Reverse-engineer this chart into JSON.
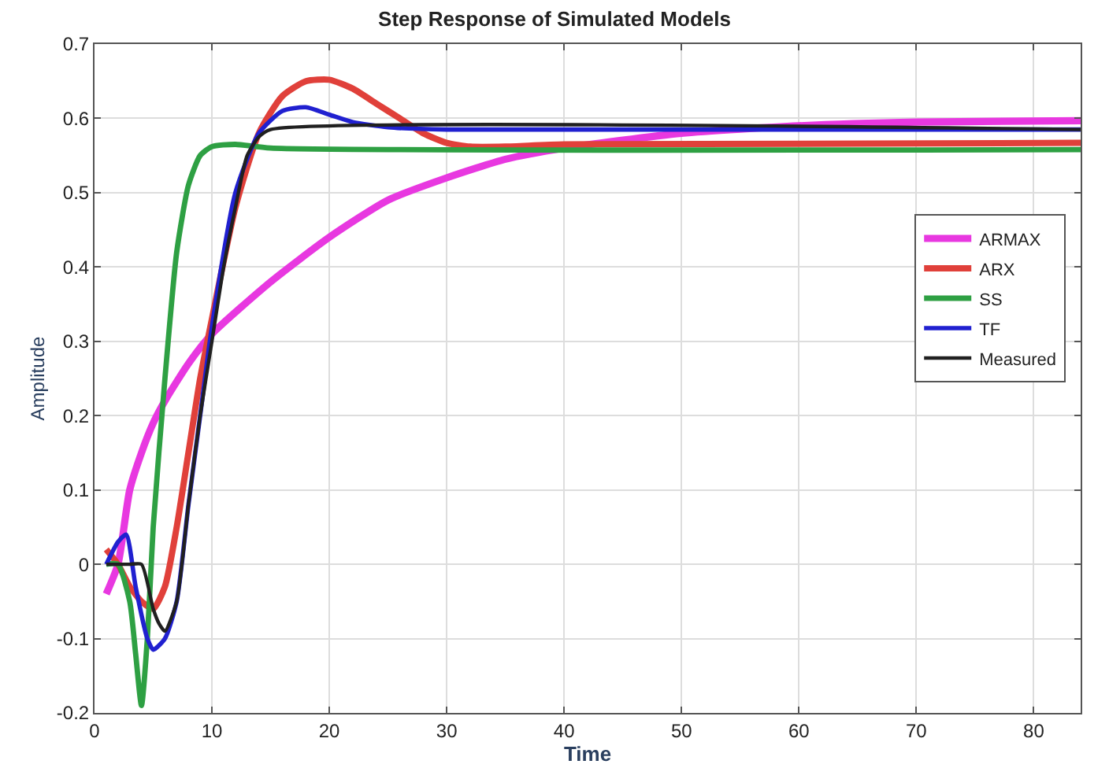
{
  "chart_data": {
    "type": "line",
    "title": "Step Response of Simulated Models",
    "xlabel": "Time",
    "ylabel": "Amplitude",
    "xlim": [
      0,
      84
    ],
    "ylim": [
      -0.2,
      0.7
    ],
    "xticks": [
      0,
      10,
      20,
      30,
      40,
      50,
      60,
      70,
      80
    ],
    "yticks": [
      -0.2,
      -0.1,
      0,
      0.1,
      0.2,
      0.3,
      0.4,
      0.5,
      0.6,
      0.7
    ],
    "grid": true,
    "legend": "right",
    "marker": "none",
    "line_style": "solid",
    "series": [
      {
        "name": "ARMAX",
        "color": "#e838e0",
        "x": [
          1,
          2,
          3,
          4,
          5,
          6,
          8,
          10,
          15,
          20,
          25,
          30,
          35,
          40,
          50,
          60,
          70,
          84
        ],
        "values": [
          -0.04,
          0.0,
          0.1,
          0.15,
          0.19,
          0.22,
          0.27,
          0.31,
          0.38,
          0.44,
          0.49,
          0.52,
          0.545,
          0.56,
          0.58,
          0.59,
          0.595,
          0.597
        ]
      },
      {
        "name": "ARX",
        "color": "#e0403a",
        "x": [
          1,
          2,
          3,
          4,
          5,
          6,
          7,
          8,
          9,
          10,
          12,
          14,
          16,
          18,
          20,
          22,
          24,
          26,
          28,
          30,
          32,
          35,
          40,
          84
        ],
        "values": [
          0.02,
          0.0,
          -0.03,
          -0.05,
          -0.06,
          -0.03,
          0.05,
          0.15,
          0.25,
          0.33,
          0.48,
          0.58,
          0.63,
          0.65,
          0.652,
          0.64,
          0.62,
          0.6,
          0.58,
          0.567,
          0.562,
          0.562,
          0.565,
          0.567
        ]
      },
      {
        "name": "SS",
        "color": "#2ea043",
        "x": [
          1,
          2,
          3,
          3.5,
          4,
          4.5,
          5,
          6,
          7,
          8,
          9,
          10,
          12,
          15,
          84
        ],
        "values": [
          0.0,
          0.0,
          -0.05,
          -0.12,
          -0.19,
          -0.1,
          0.05,
          0.25,
          0.42,
          0.51,
          0.55,
          0.562,
          0.565,
          0.56,
          0.558
        ]
      },
      {
        "name": "TF",
        "color": "#2020d0",
        "x": [
          1,
          2,
          2.7,
          3.5,
          4.5,
          5,
          6,
          7,
          8,
          9,
          10,
          12,
          14,
          16,
          18,
          20,
          22,
          25,
          30,
          84
        ],
        "values": [
          0.0,
          0.03,
          0.04,
          -0.03,
          -0.1,
          -0.115,
          -0.1,
          -0.05,
          0.08,
          0.2,
          0.32,
          0.5,
          0.58,
          0.61,
          0.615,
          0.605,
          0.595,
          0.588,
          0.585,
          0.585
        ]
      },
      {
        "name": "Measured",
        "color": "#202020",
        "x": [
          1,
          2,
          3,
          4,
          5,
          5.5,
          6,
          7,
          8,
          9,
          10,
          11,
          12,
          13,
          14,
          15,
          84
        ],
        "values": [
          0.0,
          0.0,
          0.0,
          0.0,
          -0.06,
          -0.08,
          -0.09,
          -0.05,
          0.08,
          0.2,
          0.3,
          0.4,
          0.48,
          0.55,
          0.575,
          0.585,
          0.585
        ]
      }
    ]
  }
}
